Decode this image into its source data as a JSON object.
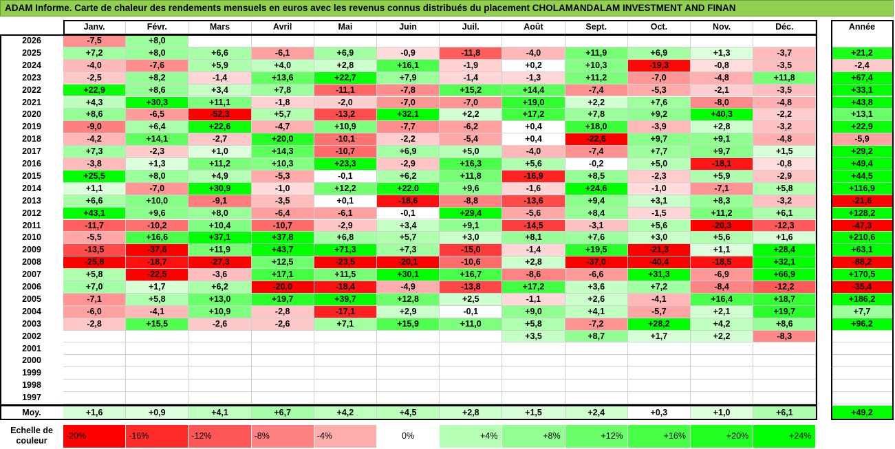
{
  "title": "ADAM Informe. Carte de chaleur des rendements mensuels en euros avec les revenus connus distribués du placement CHOLAMANDALAM INVESTMENT AND FINAN",
  "colors": {
    "title_bg": "#92d050",
    "positive_full": "#00ff00",
    "negative_full": "#ff0000",
    "neutral": "#ffffff"
  },
  "chart_data": {
    "type": "heatmap",
    "months": [
      "Janv.",
      "Févr.",
      "Mars",
      "Avril",
      "Mai",
      "Juin",
      "Juil.",
      "Août",
      "Sept.",
      "Oct.",
      "Nov.",
      "Déc."
    ],
    "year_header": "Année",
    "rows": [
      {
        "year": "2026",
        "values": [
          "-7,5",
          "+8,0",
          "",
          "",
          "",
          "",
          "",
          "",
          "",
          "",
          "",
          ""
        ],
        "annual": ""
      },
      {
        "year": "2025",
        "values": [
          "+7,2",
          "+8,0",
          "+6,6",
          "-6,1",
          "+6,9",
          "-0,9",
          "-11,8",
          "-4,0",
          "+11,9",
          "+6,9",
          "+1,3",
          "-3,7"
        ],
        "annual": "+21,2"
      },
      {
        "year": "2024",
        "values": [
          "-4,0",
          "-7,6",
          "+5,9",
          "+4,0",
          "+2,8",
          "+16,1",
          "-1,9",
          "+0,2",
          "+10,3",
          "-19,3",
          "-0,8",
          "-3,5"
        ],
        "annual": "-2,4"
      },
      {
        "year": "2023",
        "values": [
          "-2,5",
          "+8,2",
          "-1,4",
          "+13,6",
          "+22,7",
          "+7,9",
          "-1,4",
          "-1,3",
          "+11,2",
          "-7,0",
          "-4,8",
          "+11,8"
        ],
        "annual": "+67,4"
      },
      {
        "year": "2022",
        "values": [
          "+22,9",
          "+8,6",
          "+3,4",
          "+7,8",
          "-11,1",
          "-7,8",
          "+15,2",
          "+14,4",
          "-7,4",
          "-5,3",
          "-2,1",
          "-3,5"
        ],
        "annual": "+33,1"
      },
      {
        "year": "2021",
        "values": [
          "+4,3",
          "+30,3",
          "+11,1",
          "-1,8",
          "-2,0",
          "-7,0",
          "-7,0",
          "+19,0",
          "+2,2",
          "+7,6",
          "-8,0",
          "-4,8"
        ],
        "annual": "+43,8"
      },
      {
        "year": "2020",
        "values": [
          "+8,6",
          "-6,5",
          "-52,3",
          "+5,7",
          "-13,2",
          "+32,1",
          "+2,2",
          "+17,2",
          "+7,8",
          "+9,2",
          "+40,3",
          "-2,2"
        ],
        "annual": "+13,1"
      },
      {
        "year": "2019",
        "values": [
          "-9,0",
          "+6,4",
          "+22,6",
          "-4,7",
          "+10,9",
          "-7,7",
          "-6,2",
          "+0,4",
          "+18,0",
          "-3,9",
          "+2,8",
          "-3,2"
        ],
        "annual": "+22,9"
      },
      {
        "year": "2018",
        "values": [
          "-4,2",
          "+14,1",
          "-2,7",
          "+20,0",
          "-10,1",
          "-2,2",
          "-5,4",
          "+0,4",
          "-22,6",
          "+9,7",
          "+9,1",
          "-4,8"
        ],
        "annual": "-5,9"
      },
      {
        "year": "2017",
        "values": [
          "+7,3",
          "-2,3",
          "+1,0",
          "+14,3",
          "-10,7",
          "+6,9",
          "+5,0",
          "-4,0",
          "-7,4",
          "+7,7",
          "+9,7",
          "+1,5"
        ],
        "annual": "+29,2"
      },
      {
        "year": "2016",
        "values": [
          "-3,8",
          "+1,3",
          "+11,2",
          "+10,3",
          "+23,3",
          "-2,9",
          "+16,3",
          "+5,6",
          "-0,2",
          "+5,0",
          "-18,1",
          "-0,8"
        ],
        "annual": "+49,4"
      },
      {
        "year": "2015",
        "values": [
          "+25,5",
          "+8,0",
          "+4,9",
          "-5,3",
          "-0,1",
          "+6,2",
          "+11,8",
          "-16,9",
          "+8,5",
          "-2,3",
          "+5,9",
          "-2,9"
        ],
        "annual": "+44,5"
      },
      {
        "year": "2014",
        "values": [
          "+1,1",
          "-7,0",
          "+30,9",
          "-1,0",
          "+12,2",
          "+22,0",
          "+9,6",
          "-1,6",
          "+24,6",
          "-1,0",
          "-7,1",
          "+5,8"
        ],
        "annual": "+116,9"
      },
      {
        "year": "2013",
        "values": [
          "+6,6",
          "+10,0",
          "-9,1",
          "-3,5",
          "+0,1",
          "-18,6",
          "-8,8",
          "-13,6",
          "+9,4",
          "+3,1",
          "+8,3",
          "-3,2"
        ],
        "annual": "-21,6"
      },
      {
        "year": "2012",
        "values": [
          "+43,1",
          "+9,6",
          "+8,0",
          "-6,4",
          "-6,1",
          "-0,1",
          "+29,4",
          "-5,6",
          "+8,4",
          "-1,5",
          "+11,2",
          "+6,1"
        ],
        "annual": "+128,2"
      },
      {
        "year": "2011",
        "values": [
          "-11,7",
          "-10,2",
          "+10,4",
          "-10,7",
          "-2,9",
          "+3,4",
          "+9,1",
          "-14,5",
          "-3,1",
          "+5,6",
          "-20,3",
          "-12,3"
        ],
        "annual": "-47,3"
      },
      {
        "year": "2010",
        "values": [
          "-5,5",
          "+16,6",
          "+37,1",
          "+37,8",
          "+6,8",
          "+5,7",
          "+3,0",
          "+8,1",
          "+7,6",
          "+3,0",
          "+5,6",
          "+1,6"
        ],
        "annual": "+210,6"
      },
      {
        "year": "2009",
        "values": [
          "-13,5",
          "-37,6",
          "+11,9",
          "+43,7",
          "+71,3",
          "+7,3",
          "-15,0",
          "-1,4",
          "+19,5",
          "-21,3",
          "+1,1",
          "+28,4"
        ],
        "annual": "+63,1"
      },
      {
        "year": "2008",
        "values": [
          "-25,8",
          "-18,7",
          "-27,3",
          "+12,5",
          "-23,5",
          "-20,1",
          "-10,6",
          "+2,8",
          "-37,0",
          "-40,4",
          "-18,5",
          "+32,1"
        ],
        "annual": "-88,2"
      },
      {
        "year": "2007",
        "values": [
          "+5,8",
          "-22,5",
          "-3,6",
          "+17,1",
          "+11,5",
          "+30,1",
          "+16,7",
          "-8,6",
          "-6,6",
          "+31,3",
          "-6,9",
          "+66,9"
        ],
        "annual": "+170,5"
      },
      {
        "year": "2006",
        "values": [
          "+7,0",
          "+1,7",
          "+6,2",
          "-20,0",
          "-18,4",
          "-4,9",
          "-13,8",
          "+17,2",
          "+3,6",
          "+7,2",
          "-8,4",
          "-12,2"
        ],
        "annual": "-35,4"
      },
      {
        "year": "2005",
        "values": [
          "-7,1",
          "+5,8",
          "+13,0",
          "+19,7",
          "+39,7",
          "+12,8",
          "+2,5",
          "-1,1",
          "+2,6",
          "-4,1",
          "+16,4",
          "+18,7"
        ],
        "annual": "+186,2"
      },
      {
        "year": "2004",
        "values": [
          "-6,0",
          "-4,1",
          "+10,9",
          "-2,8",
          "-17,1",
          "+2,9",
          "-0,1",
          "+9,0",
          "+4,1",
          "-5,7",
          "+2,1",
          "+19,7"
        ],
        "annual": "+7,7"
      },
      {
        "year": "2003",
        "values": [
          "-2,8",
          "+15,5",
          "-2,6",
          "-2,6",
          "+7,1",
          "+15,9",
          "+11,0",
          "+5,8",
          "-7,2",
          "+28,2",
          "+4,2",
          "+8,6"
        ],
        "annual": "+96,2"
      },
      {
        "year": "2002",
        "values": [
          "",
          "",
          "",
          "",
          "",
          "",
          "",
          "+3,5",
          "+8,7",
          "+1,7",
          "+2,2",
          "-8,3"
        ],
        "annual": ""
      },
      {
        "year": "2001",
        "values": [
          "",
          "",
          "",
          "",
          "",
          "",
          "",
          "",
          "",
          "",
          "",
          ""
        ],
        "annual": ""
      },
      {
        "year": "2000",
        "values": [
          "",
          "",
          "",
          "",
          "",
          "",
          "",
          "",
          "",
          "",
          "",
          ""
        ],
        "annual": ""
      },
      {
        "year": "1999",
        "values": [
          "",
          "",
          "",
          "",
          "",
          "",
          "",
          "",
          "",
          "",
          "",
          ""
        ],
        "annual": ""
      },
      {
        "year": "1998",
        "values": [
          "",
          "",
          "",
          "",
          "",
          "",
          "",
          "",
          "",
          "",
          "",
          ""
        ],
        "annual": ""
      },
      {
        "year": "1997",
        "values": [
          "",
          "",
          "",
          "",
          "",
          "",
          "",
          "",
          "",
          "",
          "",
          ""
        ],
        "annual": ""
      }
    ],
    "average": {
      "label": "Moy.",
      "values": [
        "+1,6",
        "+0,9",
        "+4,1",
        "+6,7",
        "+4,2",
        "+4,5",
        "+2,8",
        "+1,5",
        "+2,4",
        "+0,3",
        "+1,0",
        "+6,1"
      ],
      "annual": "+49,2"
    },
    "scale": {
      "label": "Echelle de couleur",
      "steps": [
        "-20%",
        "-16%",
        "-12%",
        "-8%",
        "-4%",
        "0%",
        "+4%",
        "+8%",
        "+12%",
        "+16%",
        "+20%",
        "+24%"
      ]
    }
  }
}
